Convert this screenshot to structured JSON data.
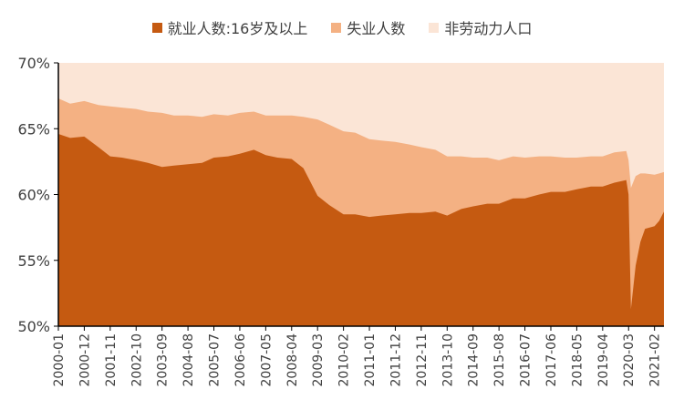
{
  "chart_data": {
    "type": "area",
    "stacked": true,
    "title": "",
    "xlabel": "",
    "ylabel": "",
    "ylim": [
      50,
      70
    ],
    "y_ticks": [
      "50%",
      "55%",
      "60%",
      "65%",
      "70%"
    ],
    "y_tick_values": [
      50,
      55,
      60,
      65,
      70
    ],
    "grid": false,
    "legend_position": "top",
    "x_tick_labels": [
      "2000-01",
      "2000-12",
      "2001-11",
      "2002-10",
      "2003-09",
      "2004-08",
      "2005-07",
      "2006-06",
      "2007-05",
      "2008-04",
      "2009-03",
      "2010-02",
      "2011-01",
      "2011-12",
      "2012-11",
      "2013-10",
      "2014-09",
      "2015-08",
      "2016-07",
      "2017-06",
      "2018-05",
      "2019-04",
      "2020-03",
      "2021-02"
    ],
    "x_start": "2000-01",
    "x_end": "2021-06",
    "series": [
      {
        "name": "就业人数:16岁及以上",
        "color": "#c55a11",
        "points": [
          [
            "2000-01",
            64.6
          ],
          [
            "2000-06",
            64.3
          ],
          [
            "2000-12",
            64.4
          ],
          [
            "2001-06",
            63.6
          ],
          [
            "2001-11",
            62.9
          ],
          [
            "2002-04",
            62.8
          ],
          [
            "2002-10",
            62.6
          ],
          [
            "2003-03",
            62.4
          ],
          [
            "2003-09",
            62.1
          ],
          [
            "2004-02",
            62.2
          ],
          [
            "2004-08",
            62.3
          ],
          [
            "2005-02",
            62.4
          ],
          [
            "2005-07",
            62.8
          ],
          [
            "2006-01",
            62.9
          ],
          [
            "2006-06",
            63.1
          ],
          [
            "2006-12",
            63.4
          ],
          [
            "2007-05",
            63.0
          ],
          [
            "2007-10",
            62.8
          ],
          [
            "2008-04",
            62.7
          ],
          [
            "2008-09",
            62.0
          ],
          [
            "2009-03",
            59.9
          ],
          [
            "2009-08",
            59.2
          ],
          [
            "2010-02",
            58.5
          ],
          [
            "2010-07",
            58.5
          ],
          [
            "2011-01",
            58.3
          ],
          [
            "2011-06",
            58.4
          ],
          [
            "2011-12",
            58.5
          ],
          [
            "2012-06",
            58.6
          ],
          [
            "2012-11",
            58.6
          ],
          [
            "2013-05",
            58.7
          ],
          [
            "2013-10",
            58.4
          ],
          [
            "2014-04",
            58.9
          ],
          [
            "2014-09",
            59.1
          ],
          [
            "2015-03",
            59.3
          ],
          [
            "2015-08",
            59.3
          ],
          [
            "2016-02",
            59.7
          ],
          [
            "2016-07",
            59.7
          ],
          [
            "2017-01",
            60.0
          ],
          [
            "2017-06",
            60.2
          ],
          [
            "2017-12",
            60.2
          ],
          [
            "2018-05",
            60.4
          ],
          [
            "2018-11",
            60.6
          ],
          [
            "2019-04",
            60.6
          ],
          [
            "2019-09",
            60.9
          ],
          [
            "2020-02",
            61.1
          ],
          [
            "2020-03",
            60.0
          ],
          [
            "2020-04",
            51.3
          ],
          [
            "2020-06",
            54.6
          ],
          [
            "2020-08",
            56.4
          ],
          [
            "2020-10",
            57.4
          ],
          [
            "2021-02",
            57.6
          ],
          [
            "2021-04",
            58.0
          ],
          [
            "2021-06",
            58.7
          ]
        ]
      },
      {
        "name": "失业人数",
        "color": "#f4b183",
        "points": [
          [
            "2000-01",
            67.3
          ],
          [
            "2000-06",
            66.9
          ],
          [
            "2000-12",
            67.1
          ],
          [
            "2001-06",
            66.8
          ],
          [
            "2001-11",
            66.7
          ],
          [
            "2002-04",
            66.6
          ],
          [
            "2002-10",
            66.5
          ],
          [
            "2003-03",
            66.3
          ],
          [
            "2003-09",
            66.2
          ],
          [
            "2004-02",
            66.0
          ],
          [
            "2004-08",
            66.0
          ],
          [
            "2005-02",
            65.9
          ],
          [
            "2005-07",
            66.1
          ],
          [
            "2006-01",
            66.0
          ],
          [
            "2006-06",
            66.2
          ],
          [
            "2006-12",
            66.3
          ],
          [
            "2007-05",
            66.0
          ],
          [
            "2007-10",
            66.0
          ],
          [
            "2008-04",
            66.0
          ],
          [
            "2008-09",
            65.9
          ],
          [
            "2009-03",
            65.7
          ],
          [
            "2009-08",
            65.3
          ],
          [
            "2010-02",
            64.8
          ],
          [
            "2010-07",
            64.7
          ],
          [
            "2011-01",
            64.2
          ],
          [
            "2011-06",
            64.1
          ],
          [
            "2011-12",
            64.0
          ],
          [
            "2012-06",
            63.8
          ],
          [
            "2012-11",
            63.6
          ],
          [
            "2013-05",
            63.4
          ],
          [
            "2013-10",
            62.9
          ],
          [
            "2014-04",
            62.9
          ],
          [
            "2014-09",
            62.8
          ],
          [
            "2015-03",
            62.8
          ],
          [
            "2015-08",
            62.6
          ],
          [
            "2016-02",
            62.9
          ],
          [
            "2016-07",
            62.8
          ],
          [
            "2017-01",
            62.9
          ],
          [
            "2017-06",
            62.9
          ],
          [
            "2017-12",
            62.8
          ],
          [
            "2018-05",
            62.8
          ],
          [
            "2018-11",
            62.9
          ],
          [
            "2019-04",
            62.9
          ],
          [
            "2019-09",
            63.2
          ],
          [
            "2020-02",
            63.3
          ],
          [
            "2020-03",
            62.6
          ],
          [
            "2020-04",
            60.5
          ],
          [
            "2020-06",
            61.4
          ],
          [
            "2020-08",
            61.6
          ],
          [
            "2020-10",
            61.6
          ],
          [
            "2021-02",
            61.5
          ],
          [
            "2021-04",
            61.6
          ],
          [
            "2021-06",
            61.7
          ]
        ]
      },
      {
        "name": "非劳动力人口",
        "color": "#fbe5d6",
        "points": [
          [
            "2000-01",
            70
          ],
          [
            "2021-06",
            70
          ]
        ]
      }
    ]
  }
}
